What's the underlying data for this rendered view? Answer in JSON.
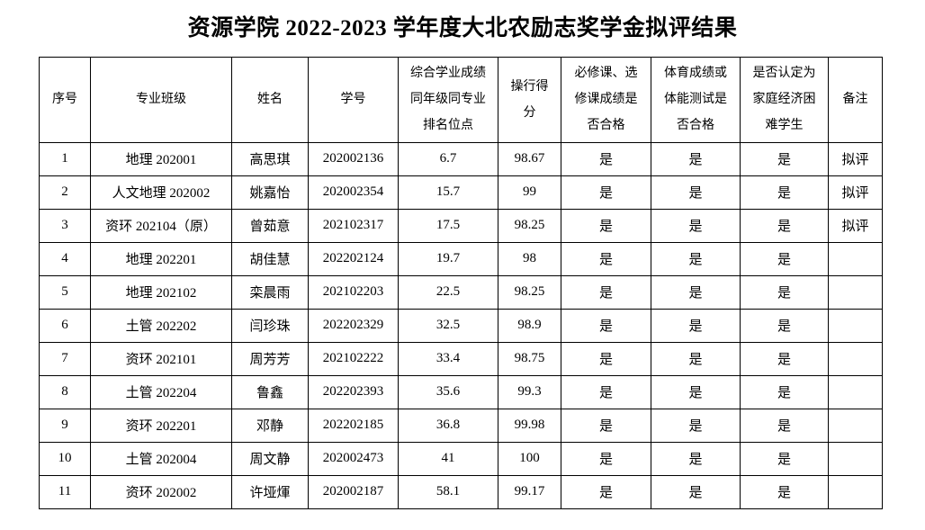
{
  "title": "资源学院 2022-2023 学年度大北农励志奖学金拟评结果",
  "table": {
    "headers": [
      "序号",
      "专业班级",
      "姓名",
      "学号",
      "综合学业成绩\n同年级同专业\n排名位点",
      "操行得\n分",
      "必修课、选\n修课成绩是\n否合格",
      "体育成绩或\n体能测试是\n否合格",
      "是否认定为\n家庭经济困\n难学生",
      "备注"
    ],
    "rows": [
      [
        "1",
        "地理 202001",
        "高思琪",
        "202002136",
        "6.7",
        "98.67",
        "是",
        "是",
        "是",
        "拟评"
      ],
      [
        "2",
        "人文地理 202002",
        "姚嘉怡",
        "202002354",
        "15.7",
        "99",
        "是",
        "是",
        "是",
        "拟评"
      ],
      [
        "3",
        "资环 202104（原）",
        "曾茹意",
        "202102317",
        "17.5",
        "98.25",
        "是",
        "是",
        "是",
        "拟评"
      ],
      [
        "4",
        "地理 202201",
        "胡佳慧",
        "202202124",
        "19.7",
        "98",
        "是",
        "是",
        "是",
        ""
      ],
      [
        "5",
        "地理 202102",
        "栾晨雨",
        "202102203",
        "22.5",
        "98.25",
        "是",
        "是",
        "是",
        ""
      ],
      [
        "6",
        "土管 202202",
        "闫珍珠",
        "202202329",
        "32.5",
        "98.9",
        "是",
        "是",
        "是",
        ""
      ],
      [
        "7",
        "资环 202101",
        "周芳芳",
        "202102222",
        "33.4",
        "98.75",
        "是",
        "是",
        "是",
        ""
      ],
      [
        "8",
        "土管 202204",
        "鲁鑫",
        "202202393",
        "35.6",
        "99.3",
        "是",
        "是",
        "是",
        ""
      ],
      [
        "9",
        "资环 202201",
        "邓静",
        "202202185",
        "36.8",
        "99.98",
        "是",
        "是",
        "是",
        ""
      ],
      [
        "10",
        "土管 202004",
        "周文静",
        "202002473",
        "41",
        "100",
        "是",
        "是",
        "是",
        ""
      ],
      [
        "11",
        "资环 202002",
        "许垭煇",
        "202002187",
        "58.1",
        "99.17",
        "是",
        "是",
        "是",
        ""
      ]
    ],
    "colors": {
      "border": "#000000",
      "text": "#000000",
      "background": "#ffffff"
    }
  }
}
